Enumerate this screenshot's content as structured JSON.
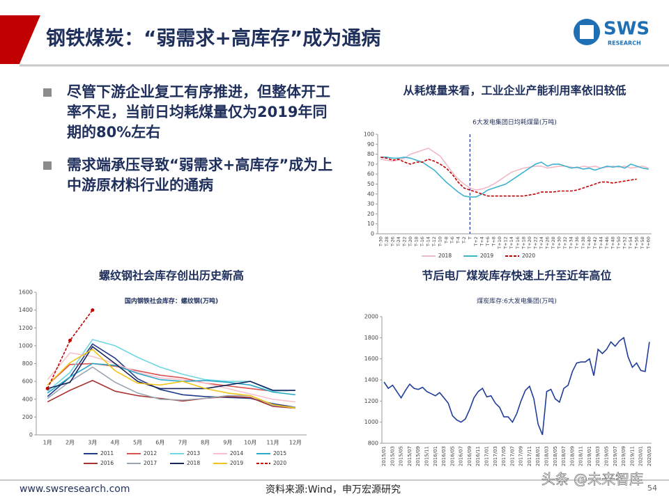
{
  "slide": {
    "title": "钢铁煤炭：“弱需求+高库存”成为通病",
    "logo": "SWS",
    "logo_sub": "RESEARCH",
    "bullets": [
      "尽管下游企业复工有序推进，但整体开工率不足，当前日均耗煤量仅为2019年同期的80%左右",
      "需求端承压导致“弱需求+高库存”成为上中游原材料行业的通病"
    ],
    "website": "www.swsresearch.com",
    "source": "资料来源:Wind，申万宏源研究",
    "page": "54",
    "watermark": "头条 @未来智库"
  },
  "chart_data": [
    {
      "type": "line",
      "heading": "从耗煤量来看，工业企业产能利用率依旧较低",
      "title": "6大发电集团日均耗煤量(万吨)",
      "categories": [
        "T-30",
        "T-28",
        "T-26",
        "T-24",
        "T-22",
        "T-20",
        "T-18",
        "T-16",
        "T-14",
        "T-12",
        "T-10",
        "T-8",
        "T-6",
        "T-4",
        "T-2",
        "T",
        "T+2",
        "T+4",
        "T+6",
        "T+8",
        "T+10",
        "T+12",
        "T+14",
        "T+16",
        "T+18",
        "T+20",
        "T+22",
        "T+24",
        "T+26",
        "T+28",
        "T+30",
        "T+32",
        "T+34",
        "T+36",
        "T+38",
        "T+40",
        "T+42",
        "T+44",
        "T+46",
        "T+48",
        "T+50",
        "T+52",
        "T+54",
        "T+56",
        "T+58",
        "T+60"
      ],
      "vline_category": "T",
      "ylim": [
        0,
        100
      ],
      "yticks": [
        0,
        10,
        20,
        30,
        40,
        50,
        60,
        70,
        80,
        90,
        100
      ],
      "legend": "bottom",
      "series": [
        {
          "name": "2018",
          "color": "#f4b8c4",
          "values": [
            75,
            74,
            73,
            74,
            76,
            80,
            82,
            84,
            86,
            82,
            78,
            70,
            62,
            55,
            50,
            46,
            44,
            45,
            47,
            50,
            54,
            58,
            62,
            64,
            66,
            67,
            68,
            68,
            66,
            67,
            68,
            68,
            67,
            66,
            68,
            67,
            68,
            66,
            67,
            68,
            67,
            68,
            66,
            67,
            68,
            66
          ]
        },
        {
          "name": "2019",
          "color": "#3bb3cf",
          "values": [
            77,
            77,
            76,
            76,
            77,
            76,
            74,
            72,
            68,
            64,
            58,
            52,
            47,
            42,
            38,
            37,
            37,
            40,
            44,
            46,
            48,
            50,
            54,
            58,
            62,
            66,
            70,
            72,
            68,
            70,
            70,
            68,
            66,
            67,
            65,
            66,
            64,
            66,
            68,
            67,
            68,
            66,
            70,
            68,
            66,
            65
          ]
        },
        {
          "name": "2020",
          "color": "#c00000",
          "dash": true,
          "values": [
            77,
            76,
            74,
            75,
            72,
            70,
            72,
            72,
            75,
            73,
            70,
            66,
            60,
            52,
            46,
            44,
            42,
            40,
            38,
            38,
            38,
            38,
            38,
            38,
            38,
            39,
            40,
            42,
            42,
            42,
            43,
            43,
            43,
            44,
            46,
            48,
            50,
            52,
            52,
            51,
            52,
            53,
            54,
            55,
            null,
            null
          ]
        }
      ]
    },
    {
      "type": "line",
      "heading": "螺纹钢社会库存创出历史新高",
      "title": "国内钢铁社会库存：螺纹钢(万吨)",
      "categories": [
        "1月",
        "2月",
        "3月",
        "4月",
        "5月",
        "6月",
        "7月",
        "8月",
        "9月",
        "10月",
        "11月",
        "12月"
      ],
      "ylim": [
        0,
        1600
      ],
      "yticks": [
        0,
        200,
        400,
        600,
        800,
        1000,
        1200,
        1400,
        1600
      ],
      "legend": "bottom",
      "series": [
        {
          "name": "2011",
          "color": "#1f3c88",
          "values": [
            430,
            650,
            1020,
            860,
            630,
            510,
            450,
            430,
            420,
            410,
            350,
            310
          ]
        },
        {
          "name": "2012",
          "color": "#d9534f",
          "values": [
            560,
            790,
            800,
            770,
            720,
            670,
            640,
            580,
            550,
            520,
            490,
            500
          ]
        },
        {
          "name": "2013",
          "color": "#6fd6e4",
          "values": [
            490,
            700,
            1070,
            1000,
            870,
            760,
            680,
            620,
            600,
            600,
            490,
            500
          ]
        },
        {
          "name": "2014",
          "color": "#f6c1cc",
          "values": [
            620,
            920,
            880,
            800,
            700,
            640,
            620,
            580,
            520,
            460,
            400,
            370
          ]
        },
        {
          "name": "2015",
          "color": "#2aa9c9",
          "values": [
            470,
            650,
            800,
            780,
            690,
            620,
            600,
            610,
            590,
            560,
            480,
            450
          ]
        },
        {
          "name": "2016",
          "color": "#a8322d",
          "values": [
            370,
            500,
            610,
            490,
            440,
            410,
            380,
            410,
            430,
            420,
            320,
            300
          ]
        },
        {
          "name": "2017",
          "color": "#9aa5b1",
          "values": [
            410,
            600,
            760,
            590,
            470,
            400,
            390,
            410,
            440,
            440,
            330,
            310
          ]
        },
        {
          "name": "2018",
          "color": "#17275e",
          "values": [
            520,
            590,
            990,
            800,
            600,
            520,
            520,
            520,
            560,
            600,
            500,
            500
          ]
        },
        {
          "name": "2019",
          "color": "#f0c419",
          "values": [
            560,
            810,
            960,
            720,
            580,
            560,
            600,
            520,
            470,
            440,
            340,
            300
          ]
        },
        {
          "name": "2020",
          "color": "#c00000",
          "dash": true,
          "markers": true,
          "values": [
            520,
            1060,
            1400,
            null,
            null,
            null,
            null,
            null,
            null,
            null,
            null,
            null
          ]
        }
      ]
    },
    {
      "type": "line",
      "heading": "节后电厂煤炭库存快速上升至近年高位",
      "title": "煤炭库存:6大发电集团(万吨)",
      "categories": [
        "2015/01",
        null,
        "2015/03",
        null,
        "2015/05",
        null,
        "2015/07",
        null,
        "2015/09",
        null,
        "2015/11",
        null,
        "2016/01",
        null,
        "2016/03",
        null,
        "2016/05",
        null,
        "2016/07",
        null,
        "2016/09",
        null,
        "2016/11",
        null,
        "2017/01",
        null,
        "2017/03",
        null,
        "2017/05",
        null,
        "2017/07",
        null,
        "2017/09",
        null,
        "2017/11",
        null,
        "2018/01",
        null,
        "2018/03",
        null,
        "2018/05",
        null,
        "2018/07",
        null,
        "2018/09",
        null,
        "2018/11",
        null,
        "2019/01",
        null,
        "2019/03",
        null,
        "2019/05",
        null,
        "2019/07",
        null,
        "2019/09",
        null,
        "2019/11",
        null,
        "2020/01",
        null,
        "2020/03"
      ],
      "ylim": [
        800,
        2000
      ],
      "yticks": [
        800,
        1000,
        1200,
        1400,
        1600,
        1800,
        2000
      ],
      "series": [
        {
          "name": null,
          "color": "#1f3c99",
          "values": [
            1380,
            1320,
            1350,
            1290,
            1230,
            1300,
            1360,
            1320,
            1310,
            1330,
            1290,
            1270,
            1250,
            1280,
            1230,
            1180,
            1060,
            1020,
            1000,
            1030,
            1120,
            1230,
            1290,
            1320,
            1240,
            1250,
            1180,
            1140,
            1050,
            1050,
            1000,
            1080,
            1200,
            1300,
            1340,
            1220,
            980,
            880,
            1290,
            1310,
            1220,
            1190,
            1320,
            1350,
            1480,
            1560,
            1570,
            1570,
            1600,
            1440,
            1690,
            1650,
            1690,
            1760,
            1720,
            1770,
            1800,
            1620,
            1520,
            1560,
            1490,
            1480,
            1760
          ]
        }
      ]
    }
  ]
}
